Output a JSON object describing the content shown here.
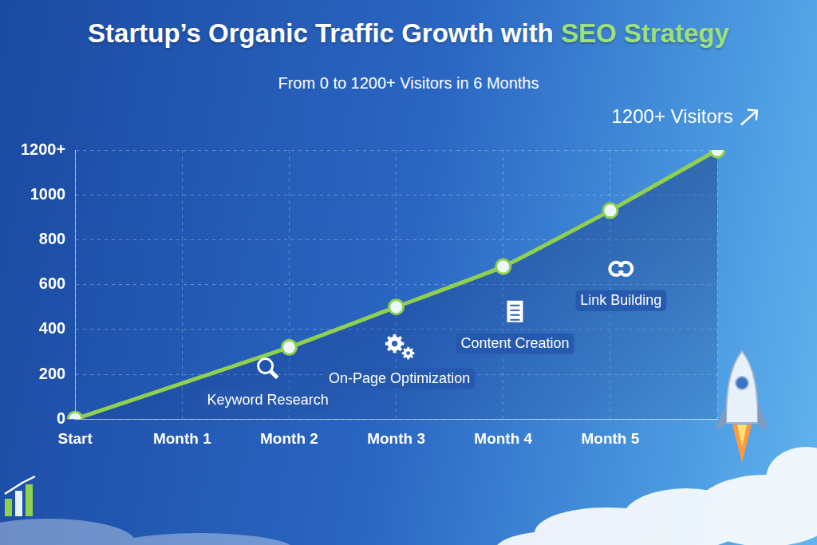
{
  "chart_data": {
    "type": "line",
    "title": "Startup’s Organic Traffic Growth with SEO Strategy",
    "subtitle": "From 0 to 1200+ Visitors in 6 Months",
    "categories": [
      "Start",
      "Month 1",
      "Month 2",
      "Month 3",
      "Month 4",
      "Month 5",
      null
    ],
    "values": [
      0,
      null,
      320,
      500,
      680,
      930,
      1200
    ],
    "color": "#8fd14f",
    "marker": "circle",
    "ylim": [
      0,
      1200
    ],
    "yticks": [
      0,
      200,
      400,
      600,
      800,
      1000,
      {
        "value": 1200,
        "label": "1200+"
      }
    ],
    "grid": true,
    "annotations": [
      "Keyword Research",
      "On-Page Optimization",
      "Content Creation",
      "Link Building",
      "1200+ Visitors"
    ]
  }
}
